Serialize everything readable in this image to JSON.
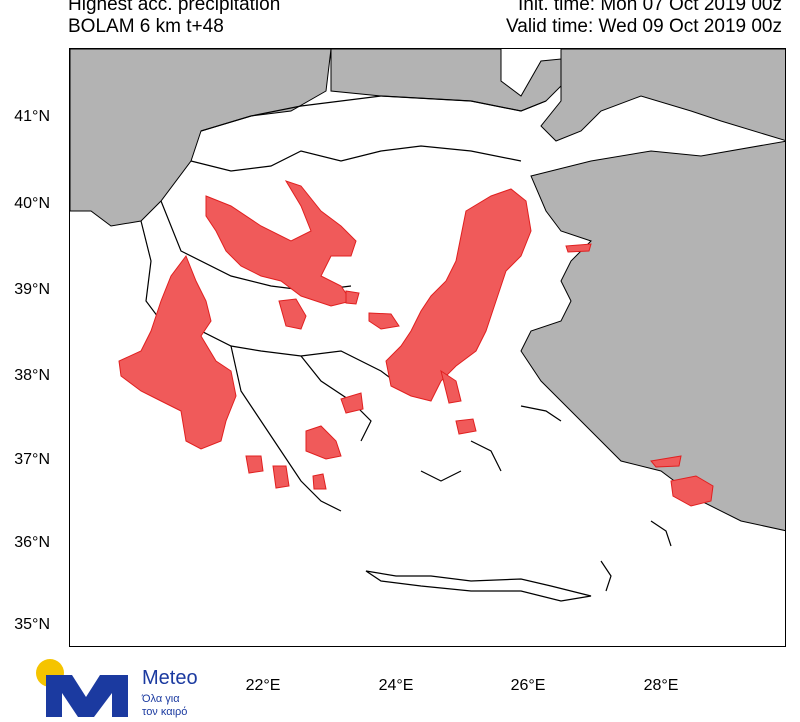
{
  "header": {
    "title_line1": "Highest acc. precipitation",
    "title_line2": "BOLAM 6 km t+48",
    "init_time": "Init. time: Mon 07 Oct 2019 00z",
    "valid_time": "Valid time: Wed 09 Oct 2019 00z"
  },
  "map": {
    "latitude_labels": [
      "41°N",
      "40°N",
      "39°N",
      "38°N",
      "37°N",
      "36°N",
      "35°N"
    ],
    "longitude_labels": [
      "22°E",
      "24°E",
      "26°E",
      "28°E"
    ],
    "colors": {
      "land_domain": "#ffffff",
      "land_outside": "#b3b3b3",
      "precip_fill": "#f05a5a",
      "precip_edge": "#e02020",
      "border": "#000000"
    }
  },
  "logo": {
    "name": "Meteo",
    "tagline_line1": "Όλα για",
    "tagline_line2": "τον καιρό",
    "colors": {
      "sun": "#f5c400",
      "mark": "#1b3aa0"
    }
  }
}
